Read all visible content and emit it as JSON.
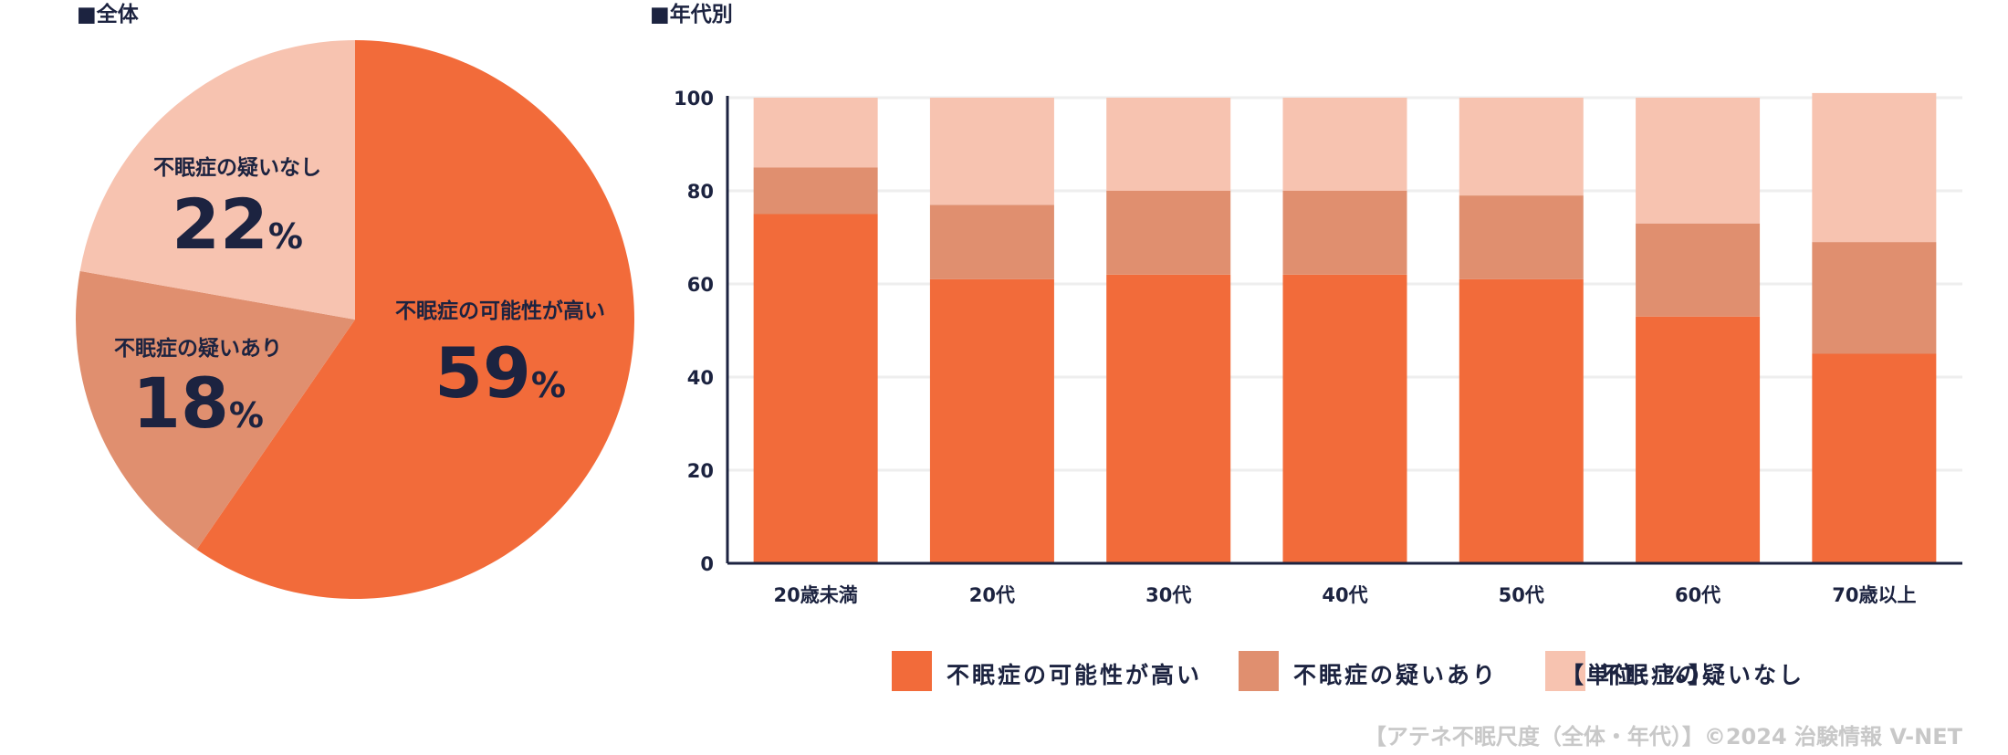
{
  "pie_section_title": "■全体",
  "bar_section_title": "■年代別",
  "unit_note": "【単位：%】",
  "credit": "【アテネ不眠尺度（全体・年代）】©2024 治験情報 V-NET",
  "pct_symbol": "%",
  "colors": {
    "high": "#f26b3a",
    "some": "#e08f6f",
    "none": "#f7c3b0",
    "axis": "#1c2340",
    "grid": "#eeeeee"
  },
  "chart_data": [
    {
      "type": "pie",
      "title": "■全体",
      "slices": [
        {
          "label": "不眠症の可能性が高い",
          "value": 59,
          "color": "#f26b3a"
        },
        {
          "label": "不眠症の疑いあり",
          "value": 18,
          "color": "#e08f6f"
        },
        {
          "label": "不眠症の疑いなし",
          "value": 22,
          "color": "#f7c3b0"
        }
      ]
    },
    {
      "type": "bar",
      "stacked": true,
      "title": "■年代別",
      "categories": [
        "20歳未満",
        "20代",
        "30代",
        "40代",
        "50代",
        "60代",
        "70歳以上"
      ],
      "series": [
        {
          "name": "不眠症の可能性が高い",
          "color": "#f26b3a",
          "values": [
            75,
            61,
            62,
            62,
            61,
            53,
            45
          ]
        },
        {
          "name": "不眠症の疑いあり",
          "color": "#e08f6f",
          "values": [
            10,
            16,
            18,
            18,
            18,
            20,
            24
          ]
        },
        {
          "name": "不眠症の疑いなし",
          "color": "#f7c3b0",
          "values": [
            15,
            23,
            20,
            20,
            21,
            27,
            32
          ]
        }
      ],
      "ylim": [
        0,
        100
      ],
      "yticks": [
        0,
        20,
        40,
        60,
        80,
        100
      ],
      "grid": true,
      "legend_position": "bottom-right"
    }
  ]
}
